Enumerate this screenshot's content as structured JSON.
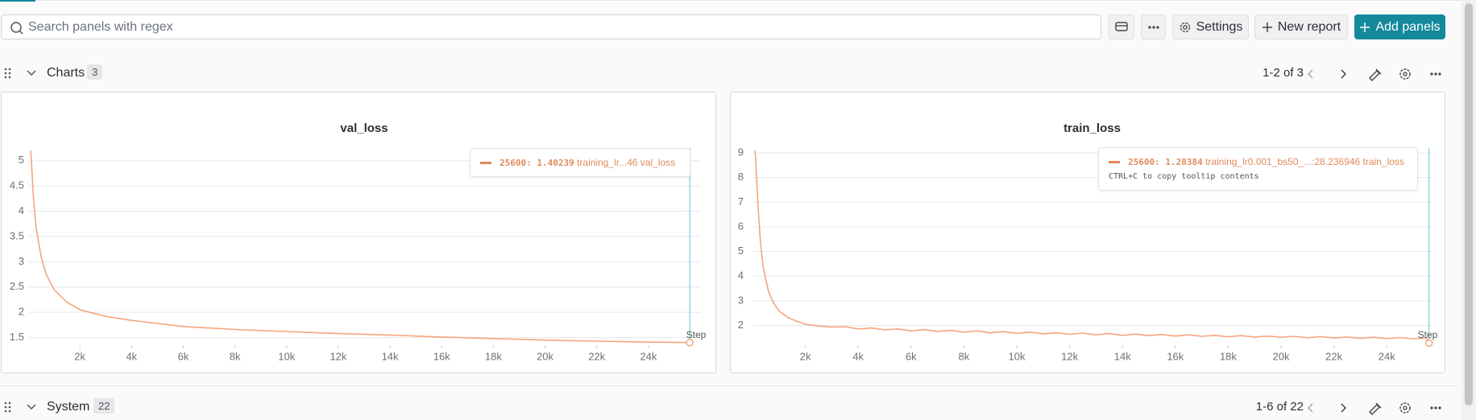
{
  "toolbar": {
    "search_placeholder": "Search panels with regex",
    "buttons": [
      "Settings",
      "New report",
      "Add panels"
    ]
  },
  "sections": [
    {
      "title": "Charts",
      "count": 3,
      "pagination": "1-2 of 3"
    },
    {
      "title": "System",
      "count": 22,
      "pagination": "1-6 of 22"
    }
  ],
  "chart_data": [
    {
      "type": "line",
      "title": "val_loss",
      "xlabel": "Step",
      "x": [
        100,
        200,
        300,
        500,
        700,
        1000,
        1500,
        2000,
        3000,
        4000,
        5000,
        6000,
        8000,
        10000,
        12000,
        14000,
        16000,
        18000,
        20000,
        22000,
        24000,
        25600
      ],
      "series": [
        {
          "name": "training_lr...46 val_loss",
          "color": "#f4a57c",
          "values": [
            5.2,
            4.3,
            3.7,
            3.1,
            2.75,
            2.45,
            2.2,
            2.05,
            1.92,
            1.84,
            1.78,
            1.72,
            1.66,
            1.62,
            1.58,
            1.55,
            1.51,
            1.48,
            1.45,
            1.43,
            1.41,
            1.40239
          ]
        }
      ],
      "tooltip_value": "25600: 1.40239",
      "xlim": [
        0,
        26000
      ],
      "ylim": [
        1.35,
        5.25
      ],
      "xticks": [
        {
          "value": 2000,
          "label": "2k"
        },
        {
          "value": 4000,
          "label": "4k"
        },
        {
          "value": 6000,
          "label": "6k"
        },
        {
          "value": 8000,
          "label": "8k"
        },
        {
          "value": 10000,
          "label": "10k"
        },
        {
          "value": 12000,
          "label": "12k"
        },
        {
          "value": 14000,
          "label": "14k"
        },
        {
          "value": 16000,
          "label": "16k"
        },
        {
          "value": 18000,
          "label": "18k"
        },
        {
          "value": 20000,
          "label": "20k"
        },
        {
          "value": 22000,
          "label": "22k"
        },
        {
          "value": 24000,
          "label": "24k"
        }
      ],
      "yticks": [
        1.5,
        2,
        2.5,
        3,
        3.5,
        4,
        4.5,
        5
      ],
      "grid": true
    },
    {
      "type": "line",
      "title": "train_loss",
      "xlabel": "Step",
      "x": [
        100,
        200,
        300,
        400,
        600,
        800,
        1000,
        1300,
        1600,
        2000,
        2500,
        3000,
        3500,
        4000,
        4500,
        5000,
        5500,
        6000,
        6500,
        7000,
        7500,
        8000,
        8500,
        9000,
        9500,
        10000,
        10500,
        11000,
        11500,
        12000,
        12500,
        13000,
        13500,
        14000,
        14500,
        15000,
        15500,
        16000,
        16500,
        17000,
        17500,
        18000,
        18500,
        19000,
        19500,
        20000,
        20500,
        21000,
        21500,
        22000,
        22500,
        23000,
        23500,
        24000,
        24500,
        25000,
        25500,
        25600
      ],
      "series": [
        {
          "name": "training_lr0.001_bs50_...:28.236946 train_loss",
          "color": "#f4a57c",
          "values": [
            9.1,
            7.0,
            5.4,
            4.4,
            3.4,
            2.9,
            2.6,
            2.35,
            2.2,
            2.05,
            1.98,
            1.93,
            1.95,
            1.86,
            1.9,
            1.82,
            1.86,
            1.78,
            1.83,
            1.76,
            1.8,
            1.73,
            1.78,
            1.7,
            1.75,
            1.68,
            1.73,
            1.66,
            1.7,
            1.64,
            1.69,
            1.62,
            1.67,
            1.6,
            1.65,
            1.59,
            1.63,
            1.57,
            1.62,
            1.56,
            1.6,
            1.54,
            1.59,
            1.53,
            1.57,
            1.52,
            1.56,
            1.5,
            1.55,
            1.49,
            1.53,
            1.48,
            1.52,
            1.47,
            1.51,
            1.46,
            1.5,
            1.28384
          ]
        }
      ],
      "tooltip_value": "25600: 1.28384",
      "hint": "CTRL+C to copy tooltip contents",
      "xlim": [
        0,
        25700
      ],
      "ylim": [
        1.2,
        9.2
      ],
      "xticks": [
        {
          "value": 2000,
          "label": "2k"
        },
        {
          "value": 4000,
          "label": "4k"
        },
        {
          "value": 6000,
          "label": "6k"
        },
        {
          "value": 8000,
          "label": "8k"
        },
        {
          "value": 10000,
          "label": "10k"
        },
        {
          "value": 12000,
          "label": "12k"
        },
        {
          "value": 14000,
          "label": "14k"
        },
        {
          "value": 16000,
          "label": "16k"
        },
        {
          "value": 18000,
          "label": "18k"
        },
        {
          "value": 20000,
          "label": "20k"
        },
        {
          "value": 22000,
          "label": "22k"
        },
        {
          "value": 24000,
          "label": "24k"
        }
      ],
      "yticks": [
        2,
        3,
        4,
        5,
        6,
        7,
        8,
        9
      ],
      "grid": true
    }
  ]
}
